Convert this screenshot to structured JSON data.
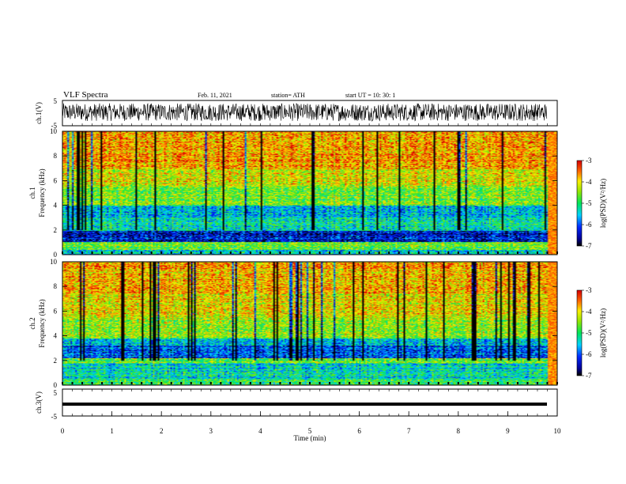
{
  "header": {
    "title": "VLF Spectra",
    "date": "Feb. 11, 2021",
    "station": "station= ATH",
    "start": "start  UT  =   10: 30: 1"
  },
  "chart_data": [
    {
      "type": "line",
      "name": "ch1-waveform",
      "ylabel": "ch.1(V)",
      "ylim": [
        -5,
        5
      ],
      "yticks": [
        "5",
        "-5"
      ],
      "xlim": [
        0,
        10
      ],
      "summary": "dense broadband waveform, amplitude mostly between -3 and +5 V"
    },
    {
      "type": "heatmap",
      "name": "ch1-spectrogram",
      "ylabel_top": "ch.1",
      "ylabel": "Frequency  (kHz)",
      "ylim": [
        0,
        10
      ],
      "yticks": [
        "0",
        "2",
        "4",
        "6",
        "8",
        "10"
      ],
      "xlim": [
        0,
        10
      ],
      "colorbar": {
        "label": "log(PSD)(V²/Hz)",
        "ticks": [
          "-3",
          "-4",
          "-5",
          "-6",
          "-7"
        ],
        "range": [
          -7,
          -3
        ]
      },
      "band_levels": [
        {
          "f": [
            0.0,
            0.4
          ],
          "level": -5.5
        },
        {
          "f": [
            0.4,
            1.0
          ],
          "level": -4.6
        },
        {
          "f": [
            1.0,
            1.9
          ],
          "level": -6.3
        },
        {
          "f": [
            1.9,
            3.0
          ],
          "level": -5.2
        },
        {
          "f": [
            3.0,
            4.0
          ],
          "level": -5.6
        },
        {
          "f": [
            4.0,
            5.5
          ],
          "level": -4.6
        },
        {
          "f": [
            5.5,
            7.0
          ],
          "level": -4.1
        },
        {
          "f": [
            7.0,
            10.0
          ],
          "level": -3.7
        }
      ]
    },
    {
      "type": "heatmap",
      "name": "ch2-spectrogram",
      "ylabel_top": "ch.2",
      "ylabel": "Frequency  (kHz)",
      "ylim": [
        0,
        10
      ],
      "yticks": [
        "0",
        "2",
        "4",
        "6",
        "8",
        "10"
      ],
      "xlim": [
        0,
        10
      ],
      "colorbar": {
        "label": "log(PSD)(V²/Hz)",
        "ticks": [
          "-3",
          "-4",
          "-5",
          "-6",
          "-7"
        ],
        "range": [
          -7,
          -3
        ]
      },
      "band_levels": [
        {
          "f": [
            0.0,
            0.5
          ],
          "level": -5.0
        },
        {
          "f": [
            0.5,
            1.8
          ],
          "level": -5.3
        },
        {
          "f": [
            1.8,
            2.2
          ],
          "level": -4.6
        },
        {
          "f": [
            2.2,
            3.2
          ],
          "level": -6.0
        },
        {
          "f": [
            3.2,
            3.8
          ],
          "level": -5.5
        },
        {
          "f": [
            3.8,
            5.5
          ],
          "level": -4.4
        },
        {
          "f": [
            5.5,
            7.5
          ],
          "level": -4.0
        },
        {
          "f": [
            7.5,
            10.0
          ],
          "level": -3.8
        }
      ]
    },
    {
      "type": "line",
      "name": "ch3-waveform",
      "ylabel": "ch.3(V)",
      "ylim": [
        -5,
        5
      ],
      "yticks": [
        "5",
        "-5"
      ],
      "xlim": [
        0,
        10
      ],
      "summary": "flat trace near -1 V"
    }
  ],
  "xaxis": {
    "label": "Time  (min)",
    "ticks": [
      "0",
      "1",
      "2",
      "3",
      "4",
      "5",
      "6",
      "7",
      "8",
      "9",
      "10"
    ],
    "range": [
      0,
      10
    ]
  }
}
